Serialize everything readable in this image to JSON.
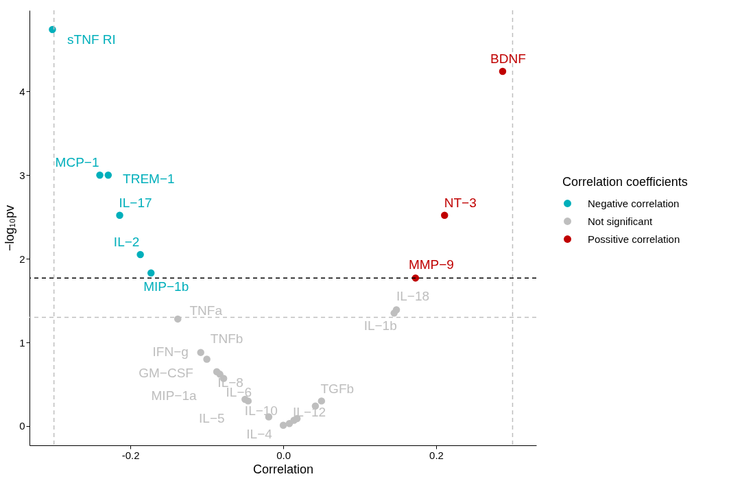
{
  "chart_data": {
    "type": "scatter",
    "xlabel": "Correlation",
    "ylabel": "−log₁₀pv",
    "legend_title": "Correlation coefficients",
    "legend": "right",
    "grid": false,
    "marker": "circle",
    "xlim": [
      -0.332,
      0.331
    ],
    "ylim": [
      -0.23,
      4.97
    ],
    "xticks": [
      {
        "value": -0.2,
        "label": "-0.2"
      },
      {
        "value": 0,
        "label": "0.0"
      },
      {
        "value": 0.2,
        "label": "0.2"
      }
    ],
    "yticks": [
      0,
      1,
      2,
      3,
      4
    ],
    "series": [
      {
        "name": "Negative correlation",
        "color": "#00afbb",
        "x": [
          -0.302,
          -0.24,
          -0.229,
          -0.214,
          -0.187,
          -0.173
        ],
        "values": [
          4.74,
          3.0,
          3.0,
          2.52,
          2.05,
          1.83
        ]
      },
      {
        "name": "Not significant",
        "color": "#bebebe",
        "x": [
          0.148,
          0.145,
          -0.138,
          -0.108,
          -0.1,
          -0.087,
          -0.083,
          -0.078,
          -0.05,
          -0.046,
          -0.019,
          0.0,
          0.008,
          0.014,
          0.018,
          0.042,
          0.05
        ],
        "values": [
          1.39,
          1.35,
          1.28,
          0.88,
          0.8,
          0.65,
          0.62,
          0.57,
          0.32,
          0.3,
          0.11,
          0.01,
          0.03,
          0.07,
          0.09,
          0.24,
          0.3
        ]
      },
      {
        "name": "Possitive correlation",
        "color": "#c00000",
        "x": [
          0.287,
          0.211,
          0.173
        ],
        "values": [
          4.24,
          2.52,
          1.77
        ]
      }
    ],
    "ref_lines": [
      {
        "axis": "x",
        "value": -0.3,
        "color": "#bebebe",
        "line_style": "dashed"
      },
      {
        "axis": "x",
        "value": 0.3,
        "color": "#bebebe",
        "line_style": "dashed"
      },
      {
        "axis": "y",
        "value": 1.3,
        "color": "#bebebe",
        "line_style": "dashed"
      },
      {
        "axis": "y",
        "value": 1.77,
        "color": "#000000",
        "line_style": "dashed"
      }
    ],
    "annotations": [
      {
        "text": "sTNF RI",
        "x": -0.302,
        "y": 4.74
      },
      {
        "text": "MCP−1",
        "x": -0.24,
        "y": 3.0
      },
      {
        "text": "TREM−1",
        "x": -0.229,
        "y": 3.0
      },
      {
        "text": "IL−17",
        "x": -0.214,
        "y": 2.52
      },
      {
        "text": "IL−2",
        "x": -0.187,
        "y": 2.05
      },
      {
        "text": "MIP−1b",
        "x": -0.173,
        "y": 1.83
      },
      {
        "text": "BDNF",
        "x": 0.287,
        "y": 4.24
      },
      {
        "text": "NT−3",
        "x": 0.211,
        "y": 2.52
      },
      {
        "text": "MMP−9",
        "x": 0.173,
        "y": 1.77
      },
      {
        "text": "IL−18",
        "x": 0.148,
        "y": 1.39
      },
      {
        "text": "IL−1b",
        "x": 0.145,
        "y": 1.35
      },
      {
        "text": "TNFa",
        "x": -0.138,
        "y": 1.28
      },
      {
        "text": "IFN−g",
        "x": -0.108,
        "y": 0.88
      },
      {
        "text": "TNFb",
        "x": -0.1,
        "y": 0.8
      },
      {
        "text": "GM−CSF",
        "x": -0.087,
        "y": 0.65
      },
      {
        "text": "MIP−1a",
        "x": -0.083,
        "y": 0.62
      },
      {
        "text": "IL−8",
        "x": -0.078,
        "y": 0.57
      },
      {
        "text": "IL−6",
        "x": -0.05,
        "y": 0.32
      },
      {
        "text": "IL−5",
        "x": -0.046,
        "y": 0.3
      },
      {
        "text": "IL−10",
        "x": -0.019,
        "y": 0.11
      },
      {
        "text": "IL−4",
        "x": 0.0,
        "y": 0.01
      },
      {
        "text": "IL−12",
        "x": 0.018,
        "y": 0.09
      },
      {
        "text": "TGFb",
        "x": 0.05,
        "y": 0.3
      }
    ]
  }
}
